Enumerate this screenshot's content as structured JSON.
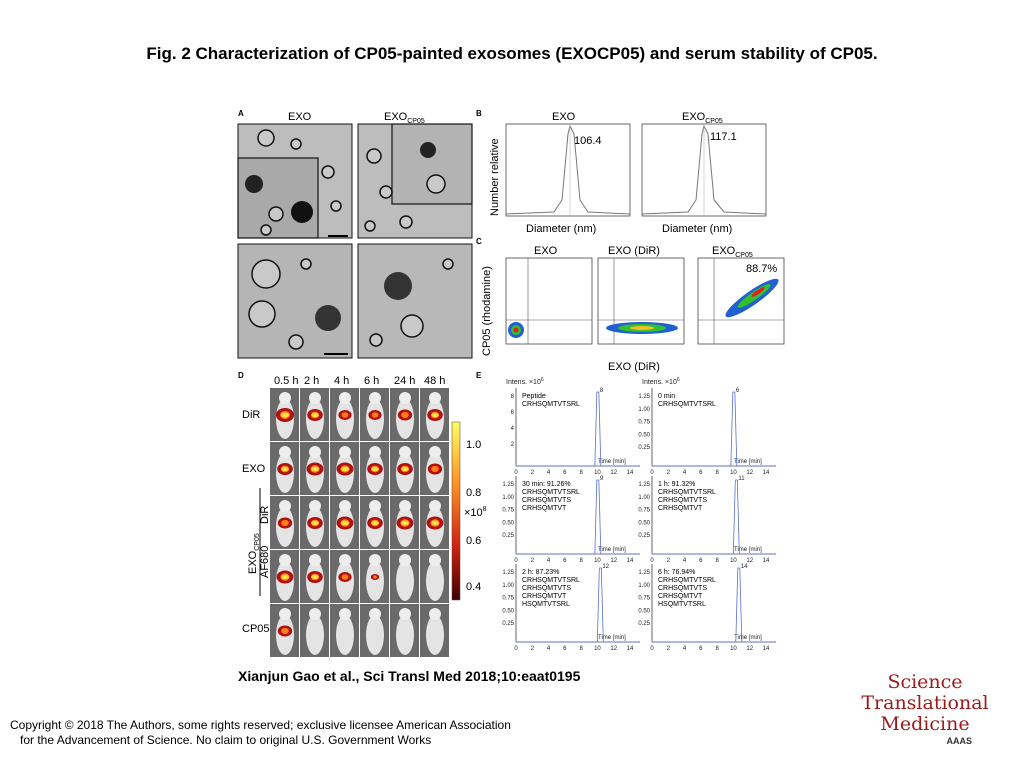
{
  "title": "Fig. 2 Characterization of CP05-painted exosomes (EXOCP05) and serum stability of CP05.",
  "citation": "Xianjun Gao et al., Sci Transl Med 2018;10:eaat0195",
  "copyright": {
    "line1": "Copyright © 2018 The Authors, some rights reserved; exclusive licensee American Association",
    "line2": "for the Advancement of Science. No claim to original U.S. Government Works"
  },
  "logo": {
    "line1": "Science",
    "line2": "Translational",
    "line3": "Medicine",
    "aaas": "AAAS"
  },
  "panelA": {
    "letter": "A",
    "exo": "EXO",
    "exo_cp05": "EXO",
    "sub": "CP05"
  },
  "panelB": {
    "letter": "B",
    "ylabel": "Number relative",
    "xlabel": "Diameter (nm)",
    "plots": [
      {
        "title": "EXO",
        "title_sub": "",
        "peak": "106.4",
        "peak_value": 106.4
      },
      {
        "title": "EXO",
        "title_sub": "CP05",
        "peak": "117.1",
        "peak_value": 117.1
      }
    ]
  },
  "panelC": {
    "letter": "C",
    "ylabel": "CP05 (rhodamine)",
    "xlabel": "EXO (DiR)",
    "plots": [
      {
        "title": "EXO",
        "title_sub": "",
        "pct": ""
      },
      {
        "title": "EXO (DiR)",
        "title_sub": "",
        "pct": ""
      },
      {
        "title": "EXO",
        "title_sub": "CP05",
        "pct": "88.7%"
      }
    ]
  },
  "panelD": {
    "letter": "D",
    "times": [
      "0.5 h",
      "2 h",
      "4 h",
      "6 h",
      "24 h",
      "48 h"
    ],
    "rows": [
      "DiR",
      "EXO",
      "DiR",
      "AF680",
      "CP05"
    ],
    "group_label": "EXO",
    "group_sub": "CP05",
    "scale": [
      "1.0",
      "0.8",
      "0.6",
      "0.4"
    ],
    "scale_unit": "×10",
    "scale_exp": "8"
  },
  "panelE": {
    "letter": "E",
    "intens": "Intens. ×10",
    "intens_exp": "6",
    "xlabel": "Time [min]",
    "xticks": [
      "0",
      "2",
      "4",
      "6",
      "8",
      "10",
      "12",
      "14"
    ],
    "plots": [
      {
        "lines": [
          "Peptide",
          "CRHSQMTVTSRL"
        ],
        "yticks": [
          "8",
          "6",
          "4",
          "2"
        ],
        "peak_label": "8"
      },
      {
        "lines": [
          "0 min",
          "CRHSQMTVTSRL"
        ],
        "yticks": [
          "1.25",
          "1.00",
          "0.75",
          "0.50",
          "0.25"
        ],
        "peak_label": "6"
      },
      {
        "lines": [
          "30 min: 91.26%",
          "CRHSQMTVTSRL",
          "CRHSQMTVTS",
          "CRHSQMTVT"
        ],
        "yticks": [
          "1.25",
          "1.00",
          "0.75",
          "0.50",
          "0.25"
        ],
        "peak_label": "9"
      },
      {
        "lines": [
          "1 h: 91.32%",
          "CRHSQMTVTSRL",
          "CRHSQMTVTS",
          "CRHSQMTVT"
        ],
        "yticks": [
          "1.25",
          "1.00",
          "0.75",
          "0.50",
          "0.25"
        ],
        "peak_label": "11"
      },
      {
        "lines": [
          "2 h: 87.23%",
          "CRHSQMTVTSRL",
          "CRHSQMTVTS",
          "CRHSQMTVT",
          "HSQMTVTSRL"
        ],
        "yticks": [
          "1.25",
          "1.00",
          "0.75",
          "0.50",
          "0.25"
        ],
        "peak_label": "12"
      },
      {
        "lines": [
          "6 h: 76.94%",
          "CRHSQMTVTSRL",
          "CRHSQMTVTS",
          "CRHSQMTVT",
          "HSQMTVTSRL"
        ],
        "yticks": [
          "1.25",
          "1.00",
          "0.75",
          "0.50",
          "0.25"
        ],
        "peak_label": "14"
      }
    ]
  }
}
